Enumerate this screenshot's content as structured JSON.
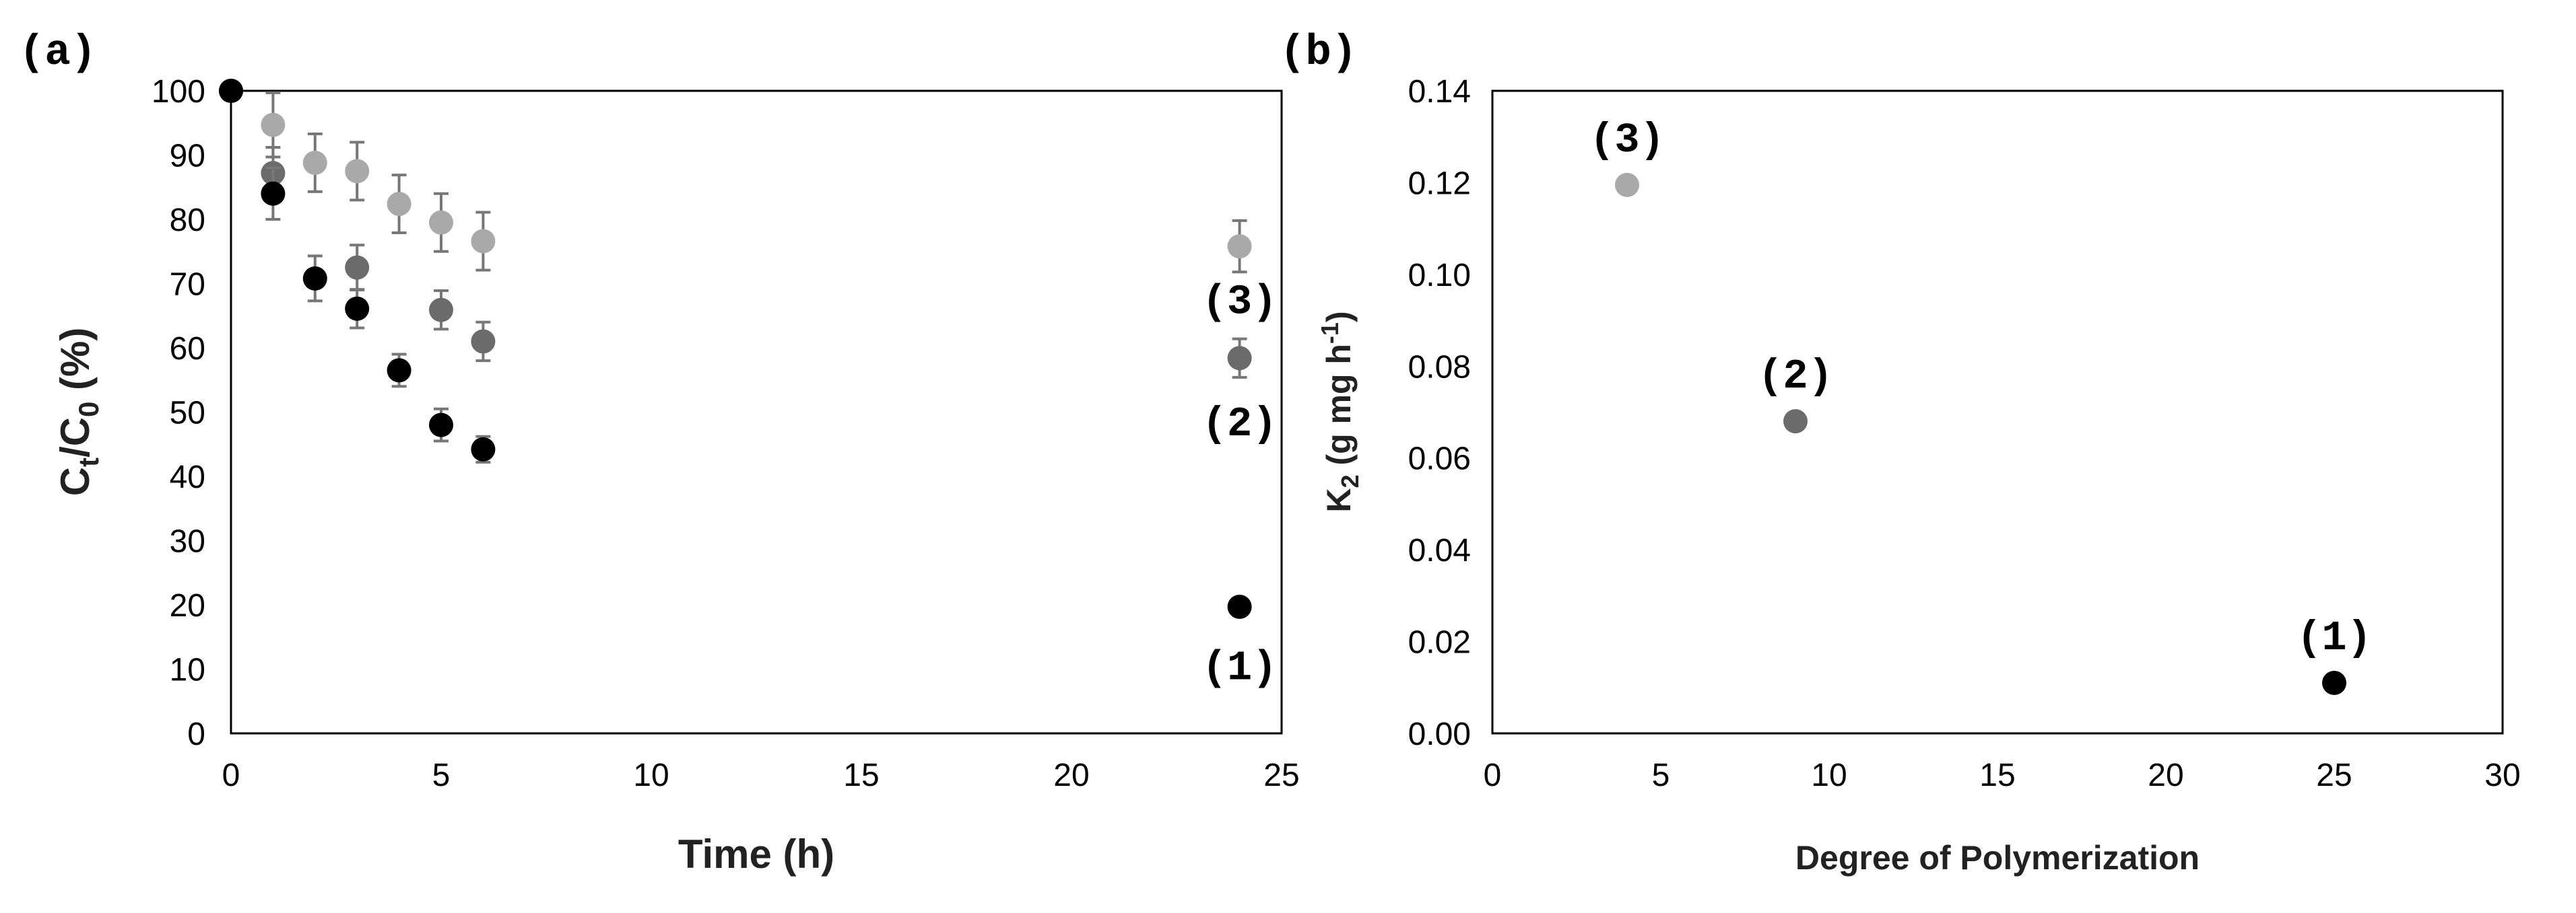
{
  "chart_data": [
    {
      "panel": "(a)",
      "type": "scatter",
      "xlabel": "Time (h)",
      "ylabel": {
        "main": "C",
        "sub1": "t",
        "mid": "/C",
        "sub2": "0",
        "tail": " (%)"
      },
      "xlim": [
        0,
        25
      ],
      "ylim": [
        0,
        100
      ],
      "xticks": [
        0,
        5,
        10,
        15,
        20,
        25
      ],
      "yticks": [
        0,
        10,
        20,
        30,
        40,
        50,
        60,
        70,
        80,
        90,
        100
      ],
      "grid": false,
      "series": [
        {
          "label": "(1)",
          "color": "#000000",
          "points": [
            {
              "x": 0,
              "y": 100,
              "err": 0
            },
            {
              "x": 1,
              "y": 84,
              "err": 4
            },
            {
              "x": 2,
              "y": 70.8,
              "err": 3.5
            },
            {
              "x": 3,
              "y": 66.1,
              "err": 3
            },
            {
              "x": 4,
              "y": 56.5,
              "err": 2.5
            },
            {
              "x": 5,
              "y": 48,
              "err": 2.5
            },
            {
              "x": 6,
              "y": 44.2,
              "err": 2
            },
            {
              "x": 24,
              "y": 19.7,
              "err": 0
            }
          ]
        },
        {
          "label": "(2)",
          "color": "#6b6b6b",
          "points": [
            {
              "x": 0,
              "y": 100,
              "err": 0
            },
            {
              "x": 1,
              "y": 87.2,
              "err": 4
            },
            {
              "x": 3,
              "y": 72.5,
              "err": 3.5
            },
            {
              "x": 5,
              "y": 65.9,
              "err": 3
            },
            {
              "x": 6,
              "y": 61,
              "err": 3
            },
            {
              "x": 24,
              "y": 58.4,
              "err": 3
            }
          ]
        },
        {
          "label": "(3)",
          "color": "#a9a9a9",
          "points": [
            {
              "x": 0,
              "y": 100,
              "err": 0
            },
            {
              "x": 1,
              "y": 94.7,
              "err": 5
            },
            {
              "x": 2,
              "y": 88.8,
              "err": 4.5
            },
            {
              "x": 3,
              "y": 87.5,
              "err": 4.5
            },
            {
              "x": 4,
              "y": 82.4,
              "err": 4.5
            },
            {
              "x": 5,
              "y": 79.5,
              "err": 4.5
            },
            {
              "x": 6,
              "y": 76.6,
              "err": 4.5
            },
            {
              "x": 24,
              "y": 75.8,
              "err": 4
            }
          ]
        }
      ],
      "annotations": [
        {
          "text": "(3)",
          "x": 24,
          "y": 67.5
        },
        {
          "text": "(2)",
          "x": 24,
          "y": 48.5
        },
        {
          "text": "(1)",
          "x": 24,
          "y": 10.5
        }
      ]
    },
    {
      "panel": "(b)",
      "type": "scatter",
      "xlabel": "Degree of Polymerization",
      "ylabel": {
        "main": "K",
        "sub1": "2",
        "mid": " (g mg h",
        "sup": "-1",
        "tail": ")"
      },
      "xlim": [
        0,
        30
      ],
      "ylim": [
        0,
        0.14
      ],
      "xticks": [
        0,
        5,
        10,
        15,
        20,
        25,
        30
      ],
      "yticks": [
        "0.00",
        "0.02",
        "0.04",
        "0.06",
        "0.08",
        "0.10",
        "0.12",
        "0.14"
      ],
      "grid": false,
      "points": [
        {
          "label": "(3)",
          "x": 4,
          "y": 0.1195,
          "color": "#a9a9a9"
        },
        {
          "label": "(2)",
          "x": 9,
          "y": 0.068,
          "color": "#6b6b6b"
        },
        {
          "label": "(1)",
          "x": 25,
          "y": 0.011,
          "color": "#000000"
        }
      ]
    }
  ]
}
